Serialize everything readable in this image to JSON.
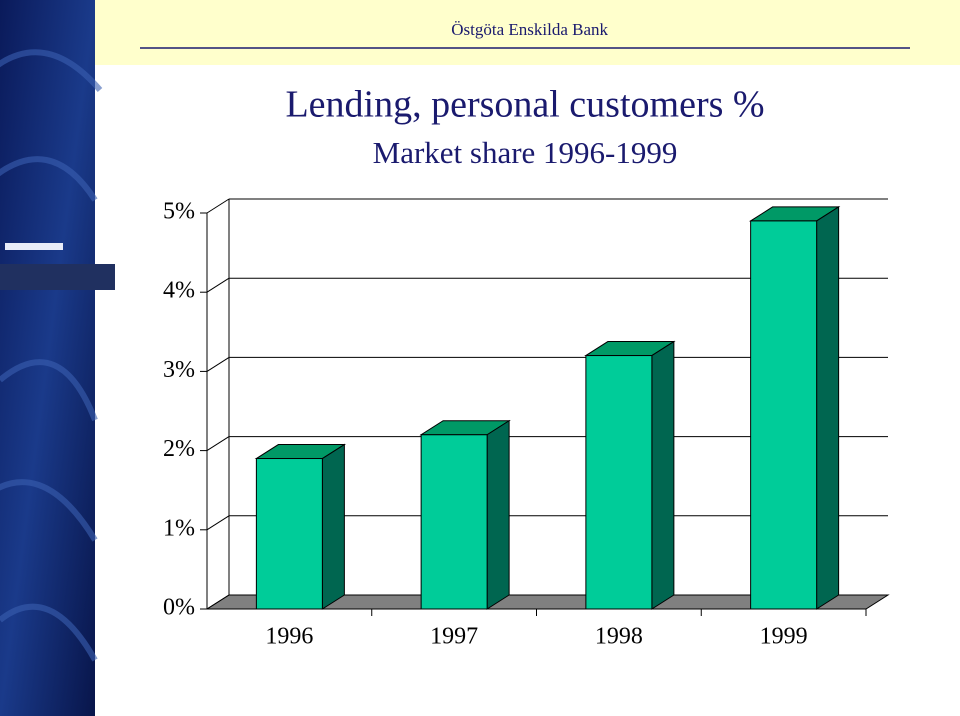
{
  "header": {
    "text": "Östgöta Enskilda Bank"
  },
  "chart_data": {
    "type": "bar3d",
    "title": "Lending, personal customers %",
    "subtitle": "Market share 1996-1999",
    "categories": [
      "1996",
      "1997",
      "1998",
      "1999"
    ],
    "values": [
      1.9,
      2.2,
      3.2,
      4.9
    ],
    "color": "#00cc99",
    "ylim": [
      0,
      5
    ],
    "yticks": [
      {
        "value": 0,
        "label": "0%"
      },
      {
        "value": 1,
        "label": "1%"
      },
      {
        "value": 2,
        "label": "2%"
      },
      {
        "value": 3,
        "label": "3%"
      },
      {
        "value": 4,
        "label": "4%"
      },
      {
        "value": 5,
        "label": "5%"
      }
    ],
    "grid": true
  }
}
